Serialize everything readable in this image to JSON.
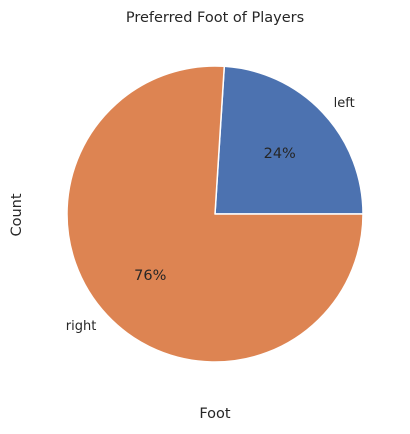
{
  "chart_data": {
    "type": "pie",
    "title": "Preferred Foot of Players",
    "xlabel": "Foot",
    "ylabel": "Count",
    "slices": [
      {
        "label": "left",
        "value": 24,
        "pct_label": "24%",
        "color": "#4c72b0"
      },
      {
        "label": "right",
        "value": 76,
        "pct_label": "76%",
        "color": "#dd8452"
      }
    ],
    "start_angle_deg": 0,
    "direction": "counterclockwise"
  }
}
